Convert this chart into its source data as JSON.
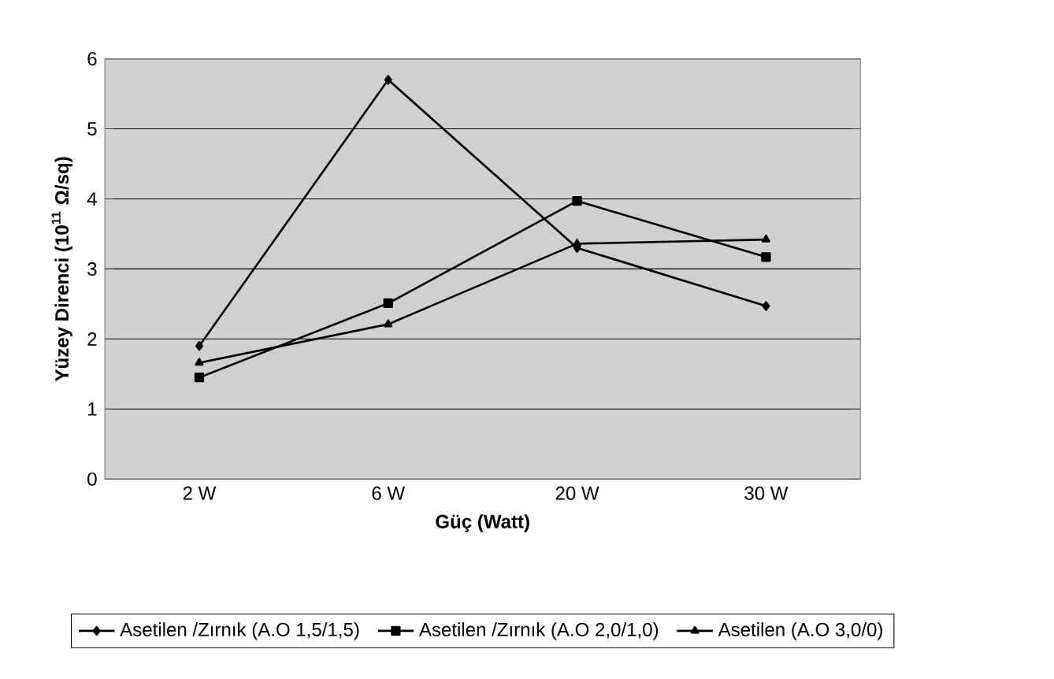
{
  "chart_data": {
    "type": "line",
    "xlabel": "Güç (Watt)",
    "ylabel": "Yüzey Direnci (10$^{11}$ Ω/sq)",
    "categories": [
      "2 W",
      "6 W",
      "20 W",
      "30 W"
    ],
    "series": [
      {
        "name": "Asetilen /Zırnık (A.O 1,5/1,5)",
        "color": "#000000",
        "marker": "diamond",
        "values": [
          1.9,
          5.7,
          3.3,
          2.47
        ]
      },
      {
        "name": "Asetilen /Zırnık (A.O 2,0/1,0)",
        "color": "#000000",
        "marker": "square",
        "values": [
          1.45,
          2.51,
          3.97,
          3.17
        ]
      },
      {
        "name": "Asetilen (A.O 3,0/0)",
        "color": "#000000",
        "marker": "triangle",
        "values": [
          1.66,
          2.21,
          3.36,
          3.42
        ]
      }
    ],
    "ylim": [
      0,
      6
    ],
    "yticks": [
      0,
      1,
      2,
      3,
      4,
      5,
      6
    ],
    "grid": "y",
    "legend": "bottom",
    "line_style": "solid"
  }
}
